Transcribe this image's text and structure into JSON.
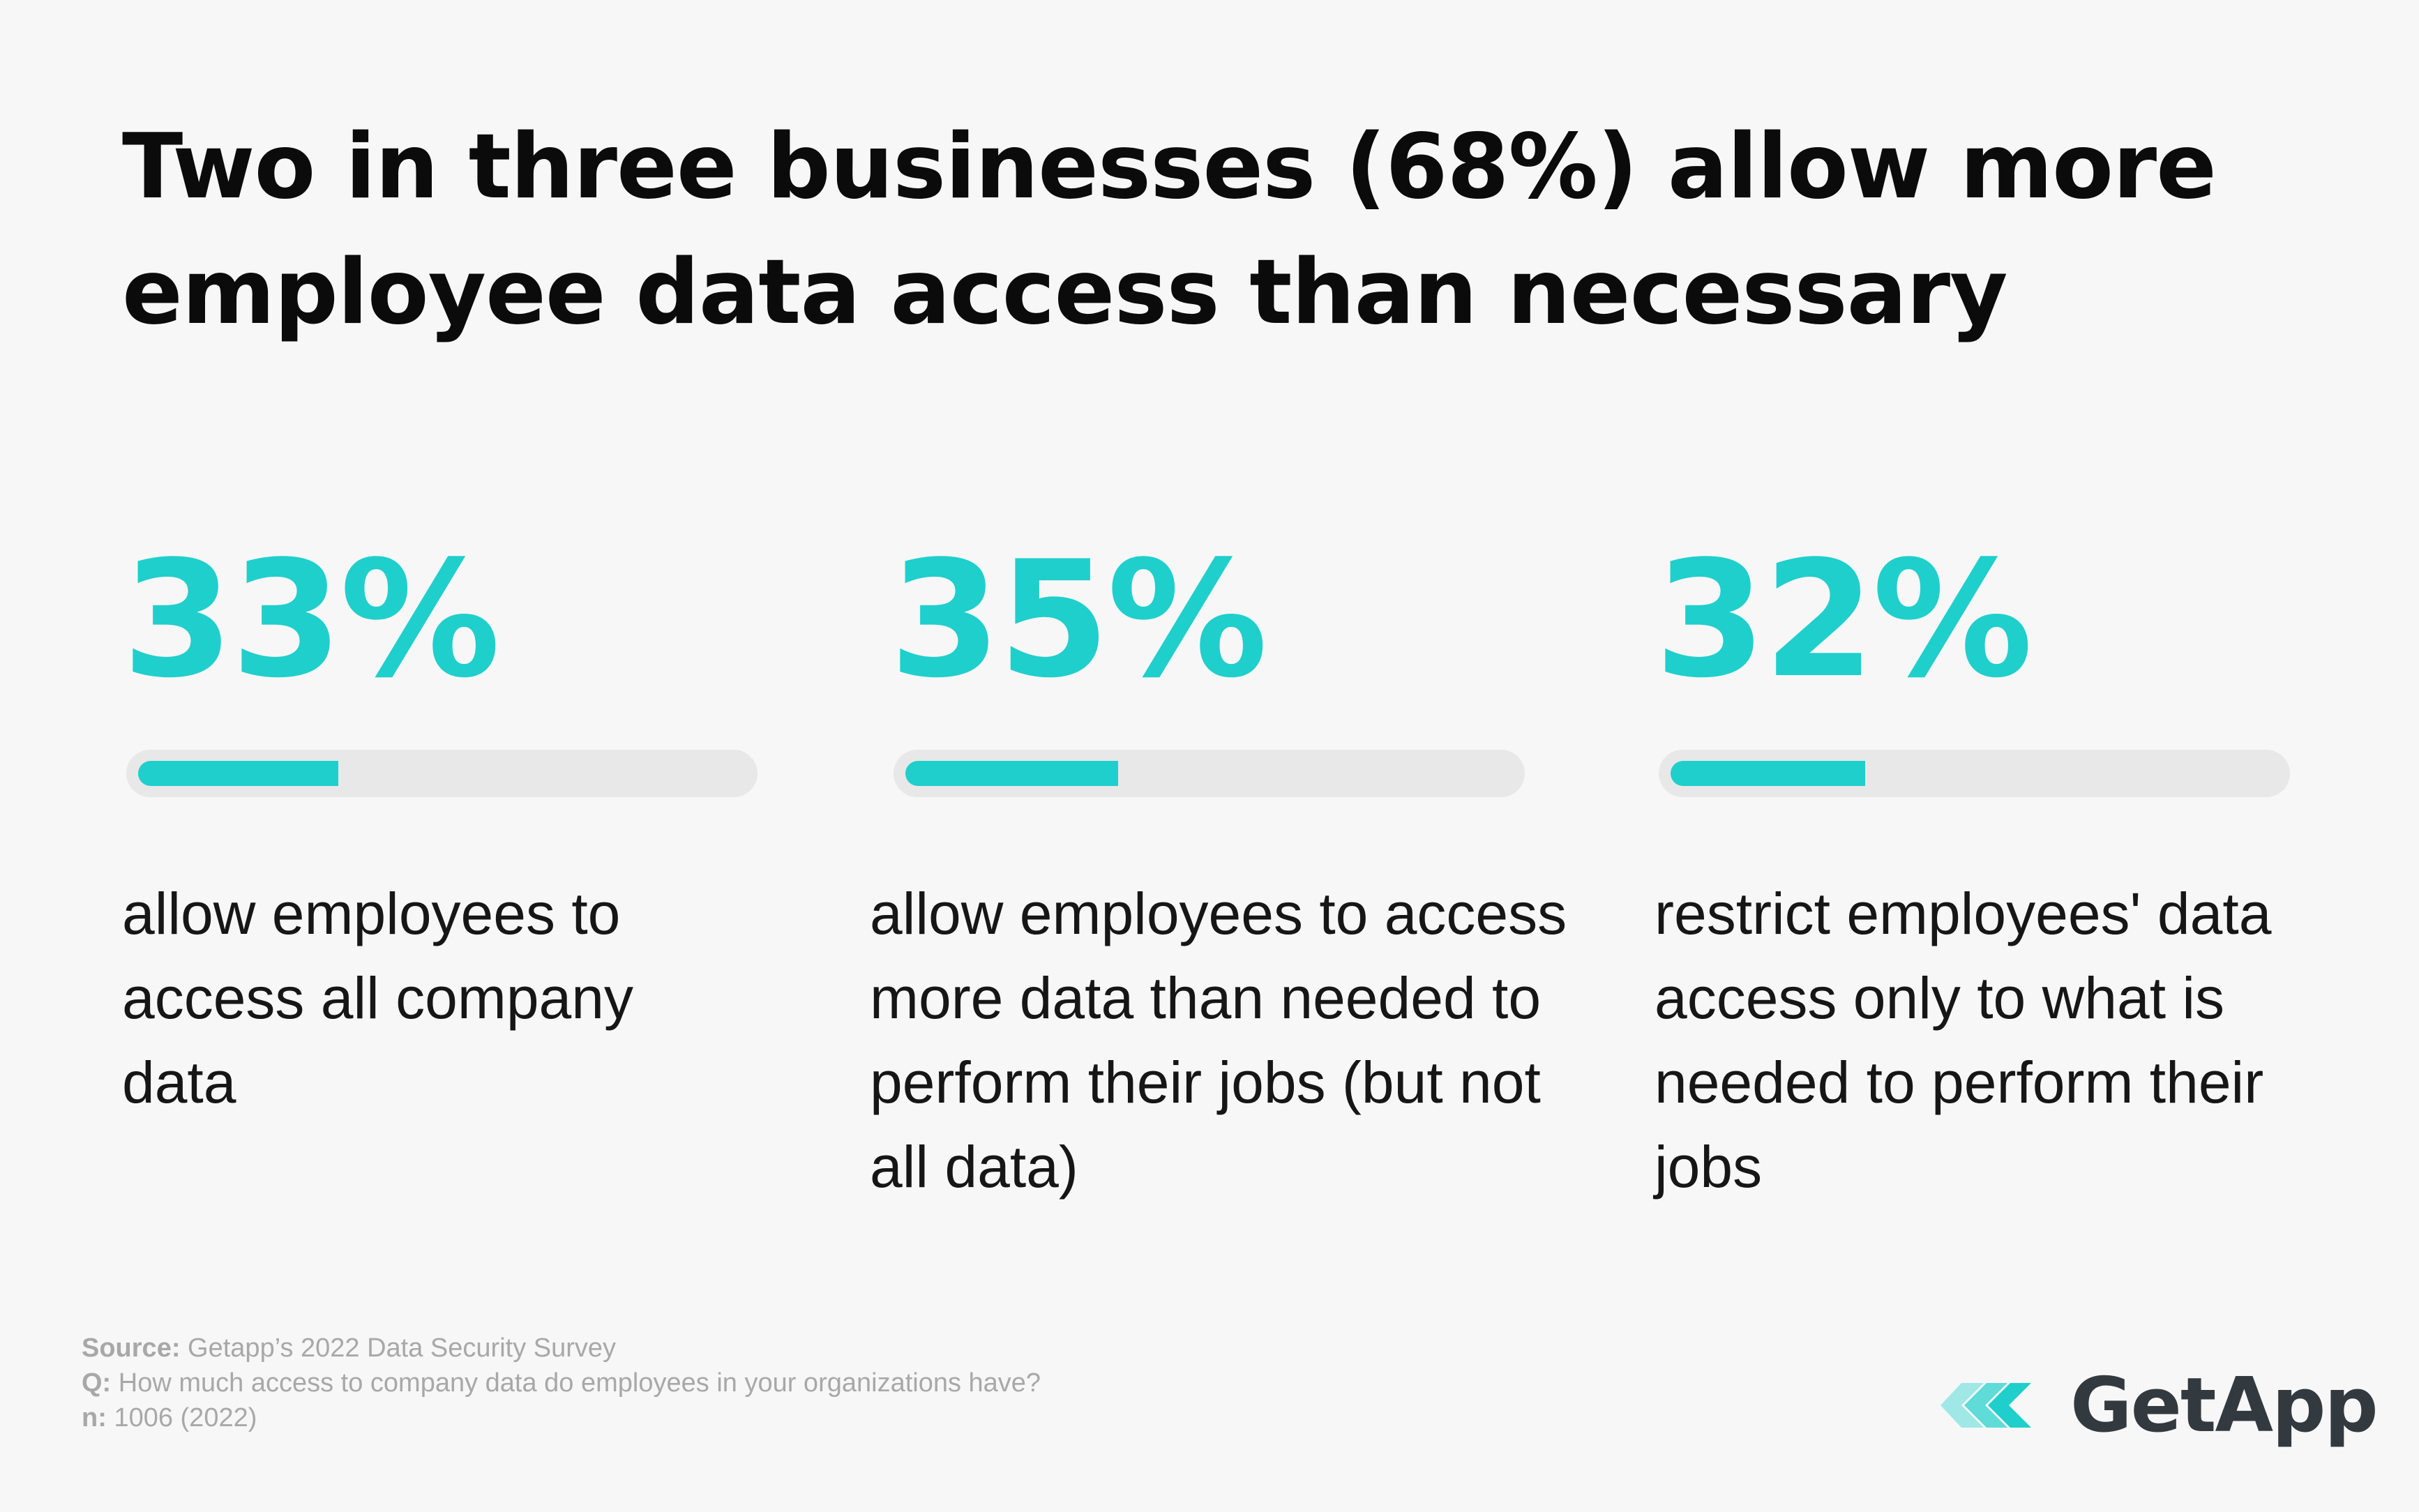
{
  "title": "Two in three businesses (68%) allow more employee data access than necessary",
  "chart_data": {
    "type": "bar",
    "orientation": "progress",
    "categories": [
      "allow employees to access all company data",
      "allow employees to access more data than needed to perform their jobs (but not all data)",
      "restrict employees' data access only to what is needed to perform their jobs"
    ],
    "values": [
      33,
      35,
      32
    ],
    "value_labels": [
      "33%",
      "35%",
      "32%"
    ],
    "ylim": [
      0,
      100
    ],
    "unit": "%",
    "title": "Two in three businesses (68%) allow more employee data access than necessary"
  },
  "stats": [
    {
      "value": 33,
      "label": "33%",
      "description": "allow employees to access all company data"
    },
    {
      "value": 35,
      "label": "35%",
      "description": "allow employees to access more data than needed to perform their jobs (but not all data)"
    },
    {
      "value": 32,
      "label": "32%",
      "description": "restrict employees' data access only to what is needed to perform their jobs"
    }
  ],
  "footer": {
    "source_label": "Source:",
    "source_text": "Getapp’s 2022 Data Security Survey",
    "question_label": "Q:",
    "question_text": "How much access to company data do employees in your organizations have?",
    "n_label": "n:",
    "n_text": "1006 (2022)"
  },
  "logo": {
    "text": "GetApp",
    "icon": "getapp-chevrons-icon"
  },
  "colors": {
    "accent": "#1fcfcc",
    "track": "#e8e8e8",
    "background": "#f7f7f7",
    "logo_text": "#333a3f"
  }
}
